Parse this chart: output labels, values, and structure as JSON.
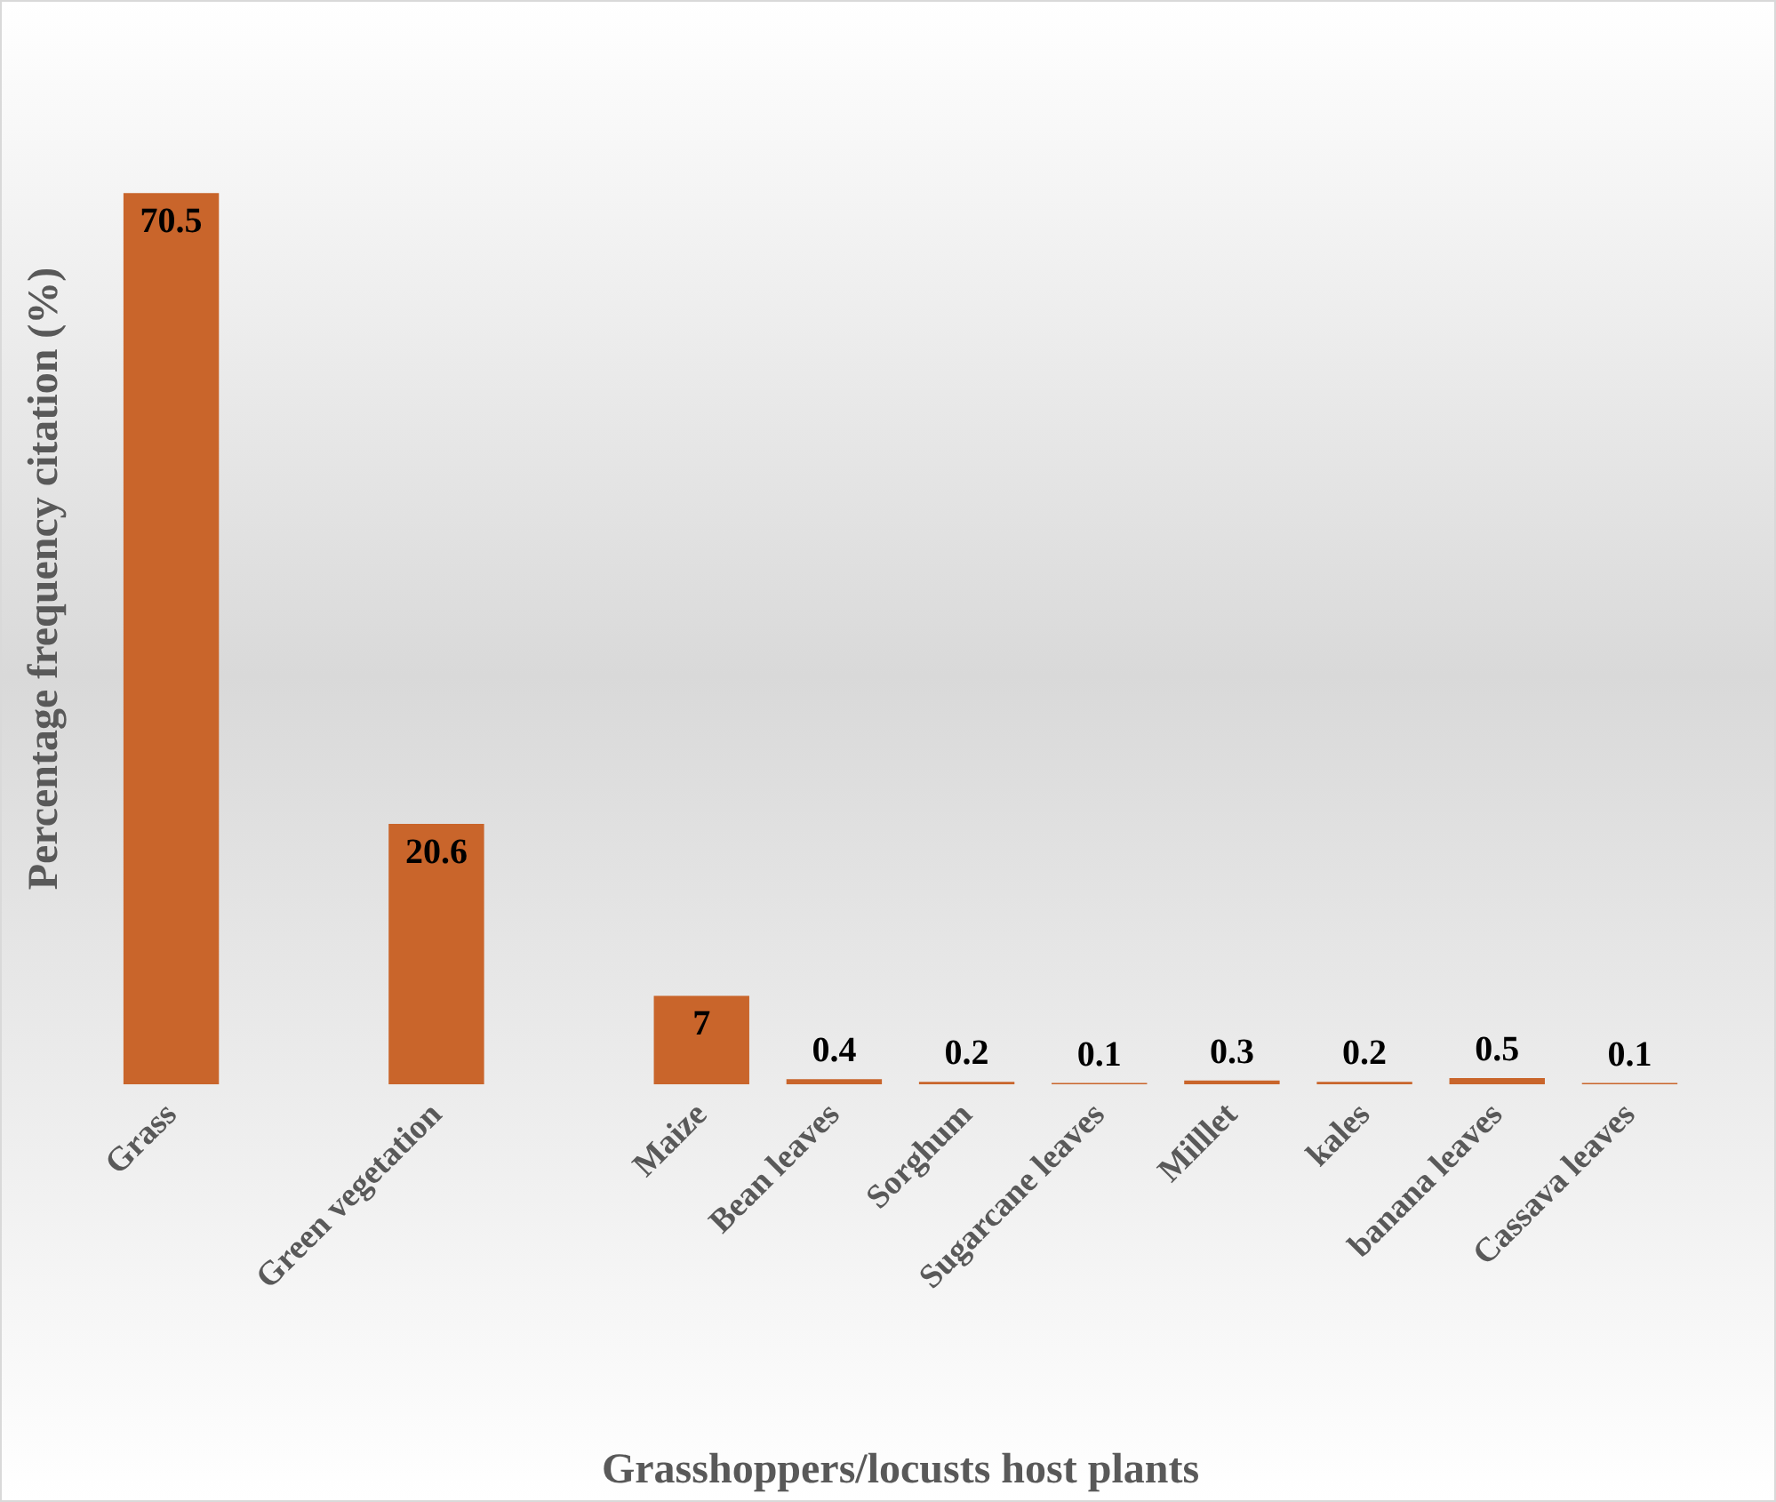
{
  "chart_data": {
    "type": "bar",
    "xlabel": "Grasshoppers/locusts host plants",
    "ylabel": "Percentage frequency citation (%)",
    "categories": [
      "Grass",
      null,
      "Green vegetation",
      null,
      "Maize",
      "Bean leaves",
      "Sorghum",
      "Sugarcane leaves",
      "Milllet",
      "kales",
      "banana leaves",
      "Cassava leaves"
    ],
    "values": [
      70.5,
      null,
      20.6,
      null,
      7,
      0.4,
      0.2,
      0.1,
      0.3,
      0.2,
      0.5,
      0.1
    ],
    "color": "#c9652b",
    "data_labels": true,
    "grid": false
  }
}
